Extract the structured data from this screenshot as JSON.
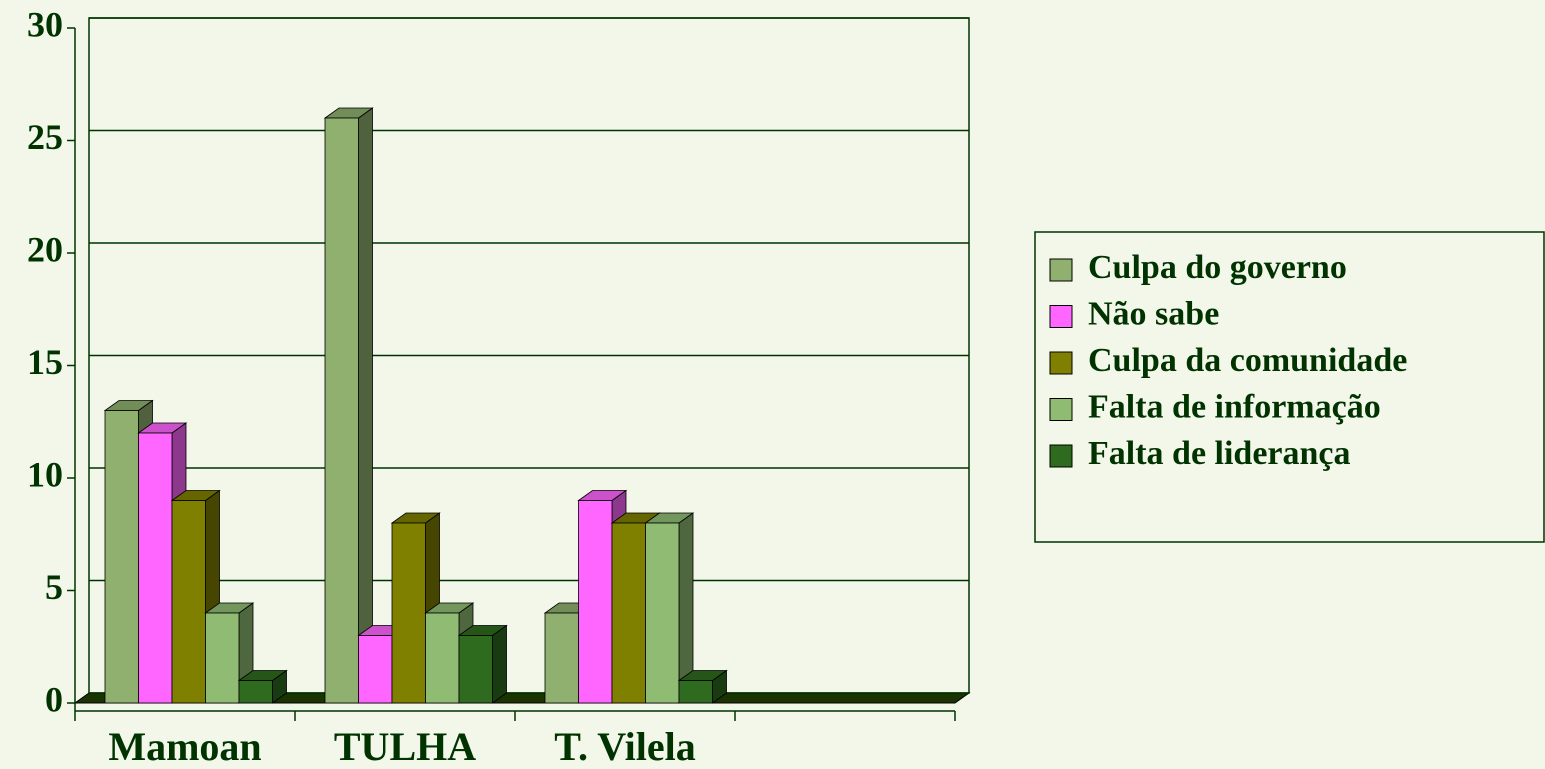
{
  "chart_data": {
    "type": "bar3d",
    "categories": [
      "Mamoan",
      "TULHA",
      "T. Vilela",
      null
    ],
    "series": [
      {
        "name": "Culpa do governo",
        "color": "#8fb06e",
        "values": [
          13,
          26,
          4,
          null
        ]
      },
      {
        "name": "Não sabe",
        "color": "#ff66ff",
        "values": [
          12,
          3,
          9,
          null
        ]
      },
      {
        "name": "Culpa da comunidade",
        "color": "#808000",
        "values": [
          9,
          8,
          8,
          null
        ]
      },
      {
        "name": "Falta de informação",
        "color": "#8fbc72",
        "values": [
          4,
          4,
          8,
          null
        ]
      },
      {
        "name": "Falta de liderança",
        "color": "#2e6b1e",
        "values": [
          1,
          3,
          1,
          null
        ]
      }
    ],
    "ylim": [
      0,
      30
    ],
    "yticks": [
      0,
      5,
      10,
      15,
      20,
      25,
      30
    ],
    "grid": true,
    "legend": "right"
  }
}
